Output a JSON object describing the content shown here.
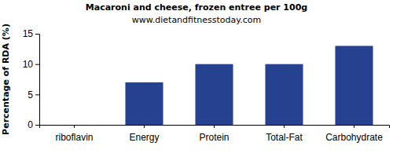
{
  "chart_data": {
    "type": "bar",
    "title": "Macaroni and cheese, frozen entree per 100g",
    "subtitle": "www.dietandfitnesstoday.com",
    "y_label": "Percentage of RDA (%)",
    "categories": [
      "riboflavin",
      "Energy",
      "Protein",
      "Total-Fat",
      "Carbohydrate"
    ],
    "values": [
      0,
      7,
      10,
      10,
      13
    ],
    "color": "#26418f",
    "ylim": [
      0,
      15
    ],
    "yticks": [
      0,
      5,
      10,
      15
    ],
    "grid": false
  }
}
